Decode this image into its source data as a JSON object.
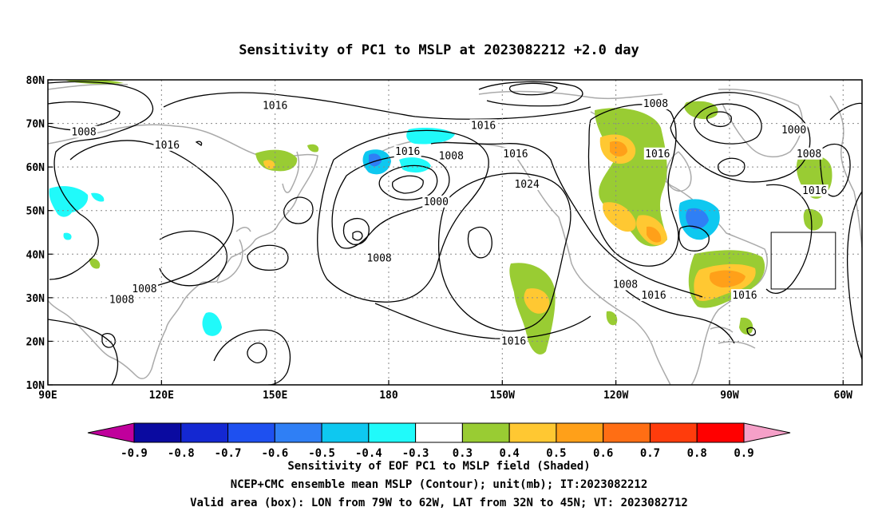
{
  "title": "Sensitivity of PC1 to MSLP at 2023082212 +2.0 day",
  "map": {
    "lon_ticks": [
      "90E",
      "120E",
      "150E",
      "180",
      "150W",
      "120W",
      "90W",
      "60W"
    ],
    "lat_ticks": [
      "80N",
      "70N",
      "60N",
      "50N",
      "40N",
      "30N",
      "20N",
      "10N"
    ],
    "lon_range": [
      90,
      305
    ],
    "lat_range": [
      10,
      80
    ],
    "grid": "dotted",
    "contour_labels": [
      {
        "text": "1016",
        "lon": 150,
        "lat": 74
      },
      {
        "text": "1008",
        "lon": 99.5,
        "lat": 68
      },
      {
        "text": "1016",
        "lon": 121.5,
        "lat": 65
      },
      {
        "text": "1016",
        "lon": 205,
        "lat": 69.5
      },
      {
        "text": "1016",
        "lon": 185,
        "lat": 63.5
      },
      {
        "text": "1008",
        "lon": 196.5,
        "lat": 62.5
      },
      {
        "text": "1016",
        "lon": 213.5,
        "lat": 63
      },
      {
        "text": "1000",
        "lon": 192.5,
        "lat": 52
      },
      {
        "text": "1024",
        "lon": 216.5,
        "lat": 56
      },
      {
        "text": "1008",
        "lon": 177.5,
        "lat": 39
      },
      {
        "text": "1008",
        "lon": 115.5,
        "lat": 32
      },
      {
        "text": "1008",
        "lon": 109.5,
        "lat": 29.5
      },
      {
        "text": "1008",
        "lon": 250.5,
        "lat": 74.5
      },
      {
        "text": "1016",
        "lon": 251,
        "lat": 63
      },
      {
        "text": "1000",
        "lon": 287,
        "lat": 68.5
      },
      {
        "text": "1008",
        "lon": 291,
        "lat": 63
      },
      {
        "text": "1016",
        "lon": 292.5,
        "lat": 54.5
      },
      {
        "text": "1008",
        "lon": 242.5,
        "lat": 33
      },
      {
        "text": "1016",
        "lon": 250,
        "lat": 30.5
      },
      {
        "text": "1016",
        "lon": 274,
        "lat": 30.5
      },
      {
        "text": "1016",
        "lon": 213,
        "lat": 20
      }
    ],
    "valid_box": {
      "lon": [
        281,
        298
      ],
      "lat": [
        32,
        45
      ]
    },
    "land_color": "#aaaaaa",
    "contour_color": "#000000"
  },
  "colorbar": {
    "labels": [
      "-0.9",
      "-0.8",
      "-0.7",
      "-0.6",
      "-0.5",
      "-0.4",
      "-0.3",
      "0.3",
      "0.4",
      "0.5",
      "0.6",
      "0.7",
      "0.8",
      "0.9"
    ],
    "colors": [
      "#c0009c",
      "#0a0aa0",
      "#1428d2",
      "#1e50f0",
      "#2f7ff5",
      "#0ec8f0",
      "#20fafa",
      "#ffffff",
      "#99cc33",
      "#ffc832",
      "#ffa019",
      "#ff6e14",
      "#ff3c0c",
      "#ff0000",
      "#f5a0c8"
    ]
  },
  "caption": {
    "line1": "Sensitivity of EOF PC1 to MSLP field (Shaded)",
    "line2": "NCEP+CMC ensemble mean MSLP (Contour); unit(mb); IT:2023082212",
    "line3": "Valid area (box): LON from 79W to 62W, LAT from 32N to 45N; VT: 2023082712"
  }
}
